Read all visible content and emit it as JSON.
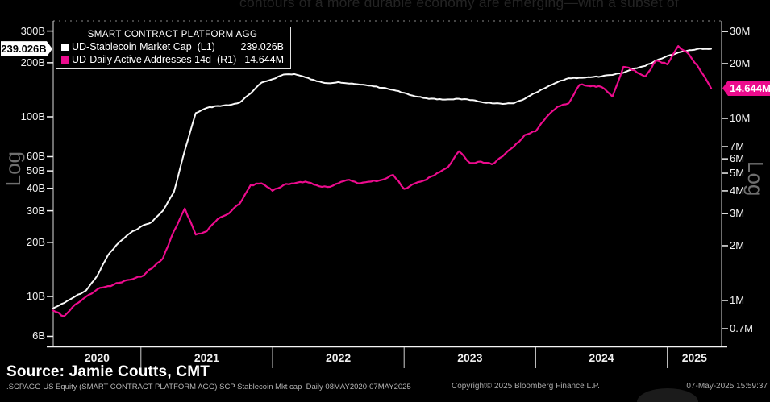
{
  "headline": {
    "text": "contours of a more durable economy are emerging—with a subset of"
  },
  "legend": {
    "title": "SMART CONTRACT PLATFORM AGG",
    "series": [
      {
        "label": "UD-Stablecoin Market Cap  (L1)",
        "value": "239.026B",
        "color": "#ffffff"
      },
      {
        "label": "UD-Daily Active Addresses 14d  (R1)",
        "value": "14.644M",
        "color": "#ec0b8d"
      }
    ]
  },
  "tags": {
    "left": {
      "text": "239.026B",
      "value": 239.026
    },
    "right": {
      "text": "14.644M",
      "value": 14.644
    }
  },
  "chart_data": {
    "type": "line",
    "title": "SMART CONTRACT PLATFORM AGG",
    "x_start": "2020-05",
    "x_freq": "monthly",
    "x_year_labels": [
      "2020",
      "2021",
      "2022",
      "2023",
      "2024",
      "2025"
    ],
    "left_axis": {
      "scale": "log",
      "label": "Log",
      "unit": "B (USD billions)",
      "ticks": [
        300,
        200,
        100,
        60,
        50,
        40,
        30,
        20,
        10,
        6
      ],
      "tick_labels": [
        "300B",
        "200B",
        "100B",
        "60B",
        "50B",
        "40B",
        "30B",
        "20B",
        "10B",
        "6B"
      ]
    },
    "right_axis": {
      "scale": "log",
      "label": "Log",
      "unit": "M (millions of addresses)",
      "ticks": [
        30,
        20,
        10,
        7,
        6,
        5,
        4,
        3,
        2,
        1,
        0.7
      ],
      "tick_labels": [
        "30M",
        "20M",
        "10M",
        "7M",
        "6M",
        "5M",
        "4M",
        "3M",
        "2M",
        "1M",
        "0.7M"
      ]
    },
    "series": [
      {
        "name": "UD-Stablecoin Market Cap (L1)",
        "axis": "left",
        "color": "#f8f8f8",
        "last_value": 239.026,
        "last_value_label": "239.026B",
        "values": [
          8.6,
          9.2,
          10,
          10.8,
          13,
          17,
          20,
          22.5,
          24.5,
          26,
          30,
          38,
          65,
          105,
          112,
          115,
          116,
          120,
          135,
          155,
          162,
          172,
          173,
          166,
          158,
          154,
          156,
          153,
          151,
          149,
          145,
          141,
          136,
          130,
          127,
          125,
          125,
          126,
          124,
          121,
          119,
          118,
          119,
          126,
          136,
          146,
          156,
          164,
          165,
          166,
          168,
          171,
          176,
          186,
          192,
          206,
          218,
          228,
          235,
          240,
          239
        ]
      },
      {
        "name": "UD-Daily Active Addresses 14d (R1)",
        "axis": "right",
        "color": "#ec0b8d",
        "last_value": 14.644,
        "last_value_label": "14.644M",
        "values": [
          0.88,
          0.82,
          0.95,
          1.05,
          1.15,
          1.2,
          1.25,
          1.3,
          1.35,
          1.5,
          1.7,
          2.4,
          3.2,
          2.3,
          2.4,
          2.8,
          3.0,
          3.4,
          4.3,
          4.4,
          4.0,
          4.3,
          4.4,
          4.5,
          4.3,
          4.2,
          4.4,
          4.6,
          4.4,
          4.5,
          4.6,
          4.9,
          4.1,
          4.4,
          4.6,
          5.0,
          5.4,
          6.6,
          5.7,
          5.8,
          5.6,
          6.2,
          7.0,
          8.1,
          8.5,
          10.2,
          11.6,
          12.1,
          15.3,
          15.0,
          14.9,
          13.2,
          19.2,
          18.4,
          17.0,
          20.8,
          19.8,
          25.0,
          22.4,
          18.4,
          14.644
        ]
      }
    ]
  },
  "footer": {
    "source": "Source: Jamie Coutts, CMT",
    "meta": ".SCPAGG US Equity (SMART CONTRACT PLATFORM AGG) SCP Stablecoin Mkt cap  Daily 08MAY2020-07MAY2025",
    "copyright": "Copyright© 2025 Bloomberg Finance L.P.",
    "timestamp": "07-May-2025 15:59:37"
  }
}
